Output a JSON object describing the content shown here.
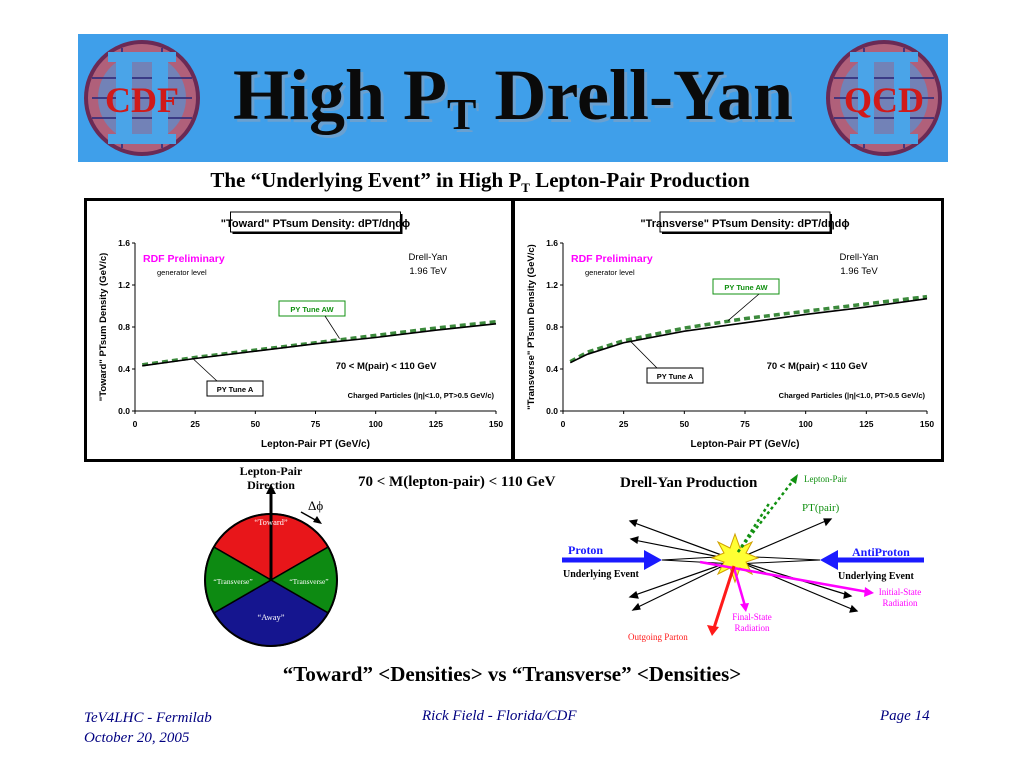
{
  "banner": {
    "title_main": "High P",
    "title_sub": "T",
    "title_rest": " Drell-Yan",
    "logo_left_text": "CDF",
    "logo_right_text": "QCD",
    "bg_color": "#3f9fea"
  },
  "subtitle": {
    "before": "The “Underlying Event” in High P",
    "sub": "T",
    "after": " Lepton-Pair Production"
  },
  "chart_data": [
    {
      "type": "line",
      "title": "\"Toward\" PTsum Density: dPT/dηdϕ",
      "xlabel": "Lepton-Pair PT  (GeV/c)",
      "ylabel": "\"Toward\" PTsum Density (GeV/c)",
      "xlim": [
        0,
        150
      ],
      "ylim": [
        0,
        1.6
      ],
      "x_ticks": [
        "0",
        "25",
        "50",
        "75",
        "100",
        "125",
        "150"
      ],
      "y_ticks": [
        "0.0",
        "0.4",
        "0.8",
        "1.2",
        "1.6"
      ],
      "grid": false,
      "series": [
        {
          "name": "PY Tune AW",
          "color": "#3c8a3c",
          "style": "dashed",
          "x": [
            3,
            25,
            50,
            75,
            100,
            125,
            150
          ],
          "y": [
            0.44,
            0.51,
            0.58,
            0.65,
            0.72,
            0.79,
            0.85
          ]
        },
        {
          "name": "PY Tune A",
          "color": "#000000",
          "style": "solid",
          "x": [
            3,
            25,
            50,
            75,
            100,
            125,
            150
          ],
          "y": [
            0.43,
            0.5,
            0.57,
            0.64,
            0.7,
            0.77,
            0.83
          ]
        }
      ],
      "annotations": {
        "rdf": "RDF Preliminary",
        "level": "generator level",
        "process": "Drell-Yan",
        "energy": "1.96 TeV",
        "mass_cut": "70 < M(pair) < 110 GeV",
        "cuts": "Charged Particles (|η|<1.0, PT>0.5 GeV/c)",
        "label_aw": "PY Tune AW",
        "label_a": "PY Tune A"
      }
    },
    {
      "type": "line",
      "title": "\"Transverse\" PTsum Density: dPT/dηdϕ",
      "xlabel": "Lepton-Pair PT  (GeV/c)",
      "ylabel": "\"Transverse\" PTsum Density (GeV/c)",
      "xlim": [
        0,
        150
      ],
      "ylim": [
        0,
        1.6
      ],
      "x_ticks": [
        "0",
        "25",
        "50",
        "75",
        "100",
        "125",
        "150"
      ],
      "y_ticks": [
        "0.0",
        "0.4",
        "0.8",
        "1.2",
        "1.6"
      ],
      "grid": false,
      "series": [
        {
          "name": "PY Tune AW",
          "color": "#3c8a3c",
          "style": "dashed",
          "x": [
            3,
            10,
            25,
            50,
            75,
            100,
            125,
            150
          ],
          "y": [
            0.47,
            0.56,
            0.67,
            0.79,
            0.88,
            0.95,
            1.02,
            1.09
          ]
        },
        {
          "name": "PY Tune A",
          "color": "#000000",
          "style": "solid",
          "x": [
            3,
            10,
            25,
            50,
            75,
            100,
            125,
            150
          ],
          "y": [
            0.46,
            0.54,
            0.65,
            0.76,
            0.84,
            0.92,
            0.99,
            1.07
          ]
        }
      ],
      "annotations": {
        "rdf": "RDF Preliminary",
        "level": "generator level",
        "process": "Drell-Yan",
        "energy": "1.96 TeV",
        "mass_cut": "70 < M(pair) < 110 GeV",
        "cuts": "Charged Particles (|η|<1.0, PT>0.5 GeV/c)",
        "label_aw": "PY Tune AW",
        "label_a": "PY Tune A"
      }
    }
  ],
  "region_diagram": {
    "axis_label_line1": "Lepton-Pair",
    "axis_label_line2": "Direction",
    "delta_phi": "Δϕ",
    "toward": "“Toward”",
    "transverse_left": "“Transverse”",
    "transverse_right": "“Transverse”",
    "away": "“Away”",
    "toward_color": "#e8161a",
    "transverse_color": "#0d8a12",
    "away_color": "#15158f"
  },
  "mid_caption": "70 < M(lepton-pair) < 110 GeV",
  "dy_diagram": {
    "title": "Drell-Yan Production",
    "lepton_pair": "Lepton-Pair",
    "pt_pair": "PT(pair)",
    "proton": "Proton",
    "antiproton": "AntiProton",
    "underlying_left": "Underlying Event",
    "underlying_right": "Underlying Event",
    "isr": "Initial-State\nRadiation",
    "isr_line1": "Initial-State",
    "isr_line2": "Radiation",
    "fsr_line1": "Final-State",
    "fsr_line2": "Radiation",
    "outgoing": "Outgoing Parton",
    "beam_color": "#1a1aff",
    "green_color": "#109010",
    "magenta_color": "#ff00ff",
    "red_color": "#ff1a1a"
  },
  "bottom_heading": "“Toward” <Densities> vs “Transverse” <Densities>",
  "footer": {
    "left_line1": "TeV4LHC - Fermilab",
    "left_line2": "October 20, 2005",
    "center": "Rick Field - Florida/CDF",
    "right": "Page 14"
  }
}
